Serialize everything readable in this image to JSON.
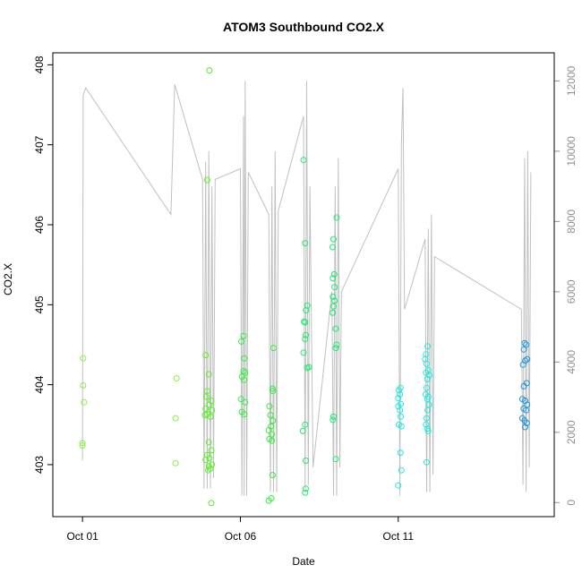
{
  "chart_data": {
    "type": "scatter",
    "title": "ATOM3 Southbound CO2.X",
    "xlabel": "Date",
    "ylabel": "CO2.X",
    "x_ticks": [
      {
        "day": 1,
        "label": "Oct 01"
      },
      {
        "day": 6,
        "label": "Oct 06"
      },
      {
        "day": 11,
        "label": "Oct 11"
      }
    ],
    "xlim": [
      0.06,
      15.94
    ],
    "ylim": [
      402.35,
      408.15
    ],
    "y_ticks": [
      403,
      404,
      405,
      406,
      407,
      408
    ],
    "y2lim": [
      -400,
      12800
    ],
    "y2_ticks": [
      0,
      2000,
      4000,
      6000,
      8000,
      10000,
      12000
    ],
    "grid": false,
    "colors": {
      "frame": "#000000",
      "altitude_line": "#c0c0c0",
      "right_axis": "#909090"
    },
    "series": [
      {
        "color": "#8cf03c",
        "points": [
          [
            1.02,
            404.33
          ],
          [
            1.02,
            403.99
          ],
          [
            1.05,
            403.78
          ],
          [
            1.0,
            403.27
          ],
          [
            1.0,
            403.24
          ],
          [
            3.98,
            404.08
          ],
          [
            3.95,
            403.58
          ],
          [
            3.95,
            403.02
          ]
        ]
      },
      {
        "color": "#5aef28",
        "points": [
          [
            5.02,
            407.93
          ],
          [
            4.95,
            406.56
          ],
          [
            4.9,
            404.37
          ],
          [
            5.0,
            404.13
          ],
          [
            4.95,
            403.92
          ],
          [
            5.08,
            403.8
          ],
          [
            4.92,
            403.85
          ],
          [
            5.02,
            403.75
          ],
          [
            4.9,
            403.7
          ],
          [
            5.1,
            403.68
          ],
          [
            4.95,
            403.63
          ],
          [
            4.88,
            403.62
          ],
          [
            5.05,
            403.6
          ],
          [
            5.0,
            403.28
          ],
          [
            5.08,
            403.18
          ],
          [
            4.95,
            403.12
          ],
          [
            5.02,
            403.08
          ],
          [
            4.9,
            403.06
          ],
          [
            5.1,
            403.0
          ],
          [
            5.0,
            402.98
          ],
          [
            5.05,
            402.95
          ],
          [
            4.98,
            402.93
          ],
          [
            5.08,
            402.52
          ]
        ]
      },
      {
        "color": "#32ee3c",
        "points": [
          [
            6.1,
            404.61
          ],
          [
            6.03,
            404.54
          ],
          [
            6.12,
            404.33
          ],
          [
            6.1,
            404.17
          ],
          [
            6.15,
            404.15
          ],
          [
            6.05,
            404.1
          ],
          [
            6.12,
            404.06
          ],
          [
            6.02,
            403.82
          ],
          [
            6.15,
            403.78
          ],
          [
            6.05,
            403.66
          ],
          [
            6.12,
            403.63
          ],
          [
            7.05,
            404.46
          ],
          [
            7.02,
            403.95
          ],
          [
            7.03,
            403.92
          ],
          [
            6.92,
            403.73
          ],
          [
            6.95,
            403.62
          ],
          [
            7.03,
            403.55
          ],
          [
            6.97,
            403.48
          ],
          [
            6.9,
            403.43
          ],
          [
            7.0,
            403.38
          ],
          [
            6.92,
            403.32
          ],
          [
            7.0,
            403.3
          ],
          [
            7.02,
            402.87
          ],
          [
            6.98,
            402.58
          ],
          [
            6.9,
            402.55
          ]
        ]
      },
      {
        "color": "#1ceb6e",
        "points": [
          [
            8.0,
            406.81
          ],
          [
            8.05,
            405.77
          ],
          [
            8.12,
            404.99
          ],
          [
            8.08,
            404.93
          ],
          [
            8.02,
            404.79
          ],
          [
            8.05,
            404.78
          ],
          [
            8.07,
            404.62
          ],
          [
            8.05,
            404.57
          ],
          [
            8.0,
            404.4
          ],
          [
            8.17,
            404.22
          ],
          [
            8.12,
            404.21
          ],
          [
            8.05,
            403.5
          ],
          [
            7.98,
            403.42
          ],
          [
            8.07,
            403.05
          ],
          [
            8.07,
            402.7
          ],
          [
            8.05,
            402.65
          ],
          [
            8.95,
            405.82
          ],
          [
            8.92,
            405.72
          ],
          [
            8.97,
            405.38
          ],
          [
            8.93,
            405.33
          ],
          [
            8.98,
            405.22
          ],
          [
            8.93,
            405.1
          ],
          [
            8.98,
            405.05
          ],
          [
            8.95,
            404.98
          ],
          [
            8.92,
            404.9
          ],
          [
            9.05,
            406.09
          ],
          [
            9.02,
            404.7
          ],
          [
            9.05,
            404.5
          ],
          [
            9.02,
            404.46
          ],
          [
            8.95,
            403.6
          ],
          [
            8.93,
            403.56
          ],
          [
            9.02,
            403.07
          ]
        ]
      },
      {
        "color": "#1eebe0",
        "points": [
          [
            11.07,
            403.96
          ],
          [
            11.02,
            403.93
          ],
          [
            11.05,
            403.88
          ],
          [
            11.0,
            403.83
          ],
          [
            11.08,
            403.76
          ],
          [
            11.0,
            403.73
          ],
          [
            11.05,
            403.68
          ],
          [
            11.08,
            403.6
          ],
          [
            11.02,
            403.5
          ],
          [
            11.1,
            403.48
          ],
          [
            11.07,
            403.15
          ],
          [
            11.1,
            402.93
          ],
          [
            11.0,
            402.74
          ],
          [
            11.88,
            404.38
          ],
          [
            11.85,
            404.32
          ],
          [
            11.93,
            404.48
          ],
          [
            11.9,
            404.26
          ],
          [
            11.95,
            404.18
          ],
          [
            11.88,
            404.15
          ],
          [
            11.98,
            404.12
          ],
          [
            11.92,
            404.07
          ],
          [
            11.9,
            403.96
          ],
          [
            11.87,
            403.88
          ],
          [
            11.95,
            403.85
          ],
          [
            11.92,
            403.82
          ],
          [
            11.97,
            403.75
          ],
          [
            11.93,
            403.68
          ],
          [
            11.9,
            403.58
          ],
          [
            11.88,
            403.5
          ],
          [
            11.92,
            403.45
          ],
          [
            11.95,
            403.42
          ],
          [
            11.9,
            403.03
          ]
        ]
      },
      {
        "color": "#1e96dc",
        "points": [
          [
            15.0,
            404.52
          ],
          [
            15.05,
            404.5
          ],
          [
            14.98,
            404.44
          ],
          [
            15.08,
            404.32
          ],
          [
            15.02,
            404.3
          ],
          [
            14.95,
            404.25
          ],
          [
            15.07,
            404.02
          ],
          [
            14.98,
            403.98
          ],
          [
            14.93,
            403.82
          ],
          [
            15.02,
            403.8
          ],
          [
            15.08,
            403.75
          ],
          [
            14.97,
            403.7
          ],
          [
            15.05,
            403.68
          ],
          [
            14.93,
            403.58
          ],
          [
            15.0,
            403.55
          ],
          [
            15.07,
            403.52
          ],
          [
            15.02,
            403.47
          ]
        ]
      }
    ],
    "altitude_profile": {
      "units_axis": "right",
      "points": [
        [
          1.0,
          1200
        ],
        [
          1.02,
          11600
        ],
        [
          1.1,
          11800
        ],
        [
          3.8,
          8200
        ],
        [
          3.92,
          11900
        ],
        [
          4.8,
          9200
        ],
        [
          4.85,
          400
        ],
        [
          4.9,
          9700
        ],
        [
          4.95,
          400
        ],
        [
          5.0,
          10000
        ],
        [
          5.05,
          400
        ],
        [
          5.1,
          9000
        ],
        [
          5.15,
          700
        ],
        [
          5.2,
          9200
        ],
        [
          6.0,
          9500
        ],
        [
          6.05,
          200
        ],
        [
          6.1,
          11000
        ],
        [
          6.12,
          200
        ],
        [
          6.15,
          12000
        ],
        [
          6.2,
          200
        ],
        [
          6.25,
          9400
        ],
        [
          6.9,
          8200
        ],
        [
          6.95,
          300
        ],
        [
          7.0,
          9000
        ],
        [
          7.05,
          300
        ],
        [
          7.1,
          10000
        ],
        [
          7.15,
          300
        ],
        [
          7.2,
          8300
        ],
        [
          8.0,
          11000
        ],
        [
          8.05,
          400
        ],
        [
          8.1,
          12000
        ],
        [
          8.15,
          500
        ],
        [
          8.2,
          9000
        ],
        [
          8.3,
          1000
        ],
        [
          8.9,
          6000
        ],
        [
          8.95,
          200
        ],
        [
          9.0,
          9000
        ],
        [
          9.05,
          200
        ],
        [
          9.1,
          9800
        ],
        [
          9.15,
          1000
        ],
        [
          9.2,
          6000
        ],
        [
          11.0,
          9500
        ],
        [
          11.05,
          200
        ],
        [
          11.1,
          10200
        ],
        [
          11.15,
          11800
        ],
        [
          11.2,
          5500
        ],
        [
          11.85,
          7500
        ],
        [
          11.9,
          300
        ],
        [
          11.95,
          7800
        ],
        [
          12.0,
          300
        ],
        [
          12.05,
          8200
        ],
        [
          12.1,
          800
        ],
        [
          12.15,
          7000
        ],
        [
          14.9,
          5500
        ],
        [
          14.95,
          500
        ],
        [
          15.0,
          9800
        ],
        [
          15.05,
          300
        ],
        [
          15.1,
          10000
        ],
        [
          15.15,
          1000
        ],
        [
          15.2,
          9400
        ]
      ]
    }
  }
}
